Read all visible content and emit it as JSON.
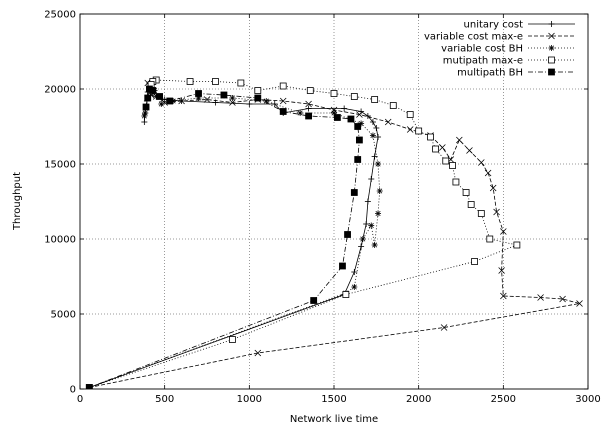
{
  "chart_data": {
    "type": "line",
    "xlabel": "Network live time",
    "ylabel": "Throughput",
    "xlim": [
      0,
      3000
    ],
    "ylim": [
      0,
      25000
    ],
    "xticks": [
      0,
      500,
      1000,
      1500,
      2000,
      2500,
      3000
    ],
    "yticks": [
      0,
      5000,
      10000,
      15000,
      20000,
      25000
    ],
    "grid": true,
    "legend_position": "top-right",
    "series": [
      {
        "name": "unitary cost",
        "line_style": "solid",
        "marker": "plus",
        "x": [
          55,
          1560,
          1620,
          1660,
          1690,
          1700,
          1720,
          1740,
          1760,
          1750,
          1730,
          1700,
          1660,
          1560,
          1350,
          1200,
          1150,
          1000,
          800,
          600,
          500,
          450,
          430,
          420,
          410,
          400,
          395,
          390,
          385,
          380
        ],
        "y": [
          100,
          6300,
          7800,
          9500,
          11000,
          12500,
          14000,
          15500,
          16800,
          17400,
          17800,
          18200,
          18500,
          18700,
          18700,
          18400,
          19000,
          19000,
          19100,
          19200,
          19300,
          19500,
          19800,
          20200,
          20400,
          19800,
          19200,
          18800,
          18400,
          17800
        ]
      },
      {
        "name": "variable cost max-e",
        "line_style": "dashed",
        "marker": "x",
        "x": [
          55,
          1050,
          2150,
          2950,
          2850,
          2720,
          2500,
          2490,
          2500,
          2460,
          2440,
          2410,
          2370,
          2300,
          2240,
          2190,
          2140,
          2070,
          1950,
          1820,
          1650,
          1500,
          1350,
          1200,
          1050,
          900,
          750,
          600,
          500,
          450,
          420,
          400
        ],
        "y": [
          100,
          2400,
          4100,
          5700,
          6000,
          6100,
          6200,
          7900,
          10500,
          11800,
          13400,
          14400,
          15100,
          15900,
          16600,
          15300,
          16100,
          16900,
          17300,
          17800,
          18300,
          18600,
          19000,
          19200,
          19300,
          19100,
          19300,
          19200,
          19100,
          19500,
          19600,
          20400
        ]
      },
      {
        "name": "variable cost BH",
        "line_style": "dotted",
        "marker": "star",
        "x": [
          55,
          1570,
          1620,
          1670,
          1720,
          1740,
          1760,
          1770,
          1760,
          1730,
          1660,
          1500,
          1300,
          1100,
          900,
          700,
          550,
          480,
          440,
          420,
          410,
          400,
          390,
          385,
          380
        ],
        "y": [
          100,
          6400,
          6800,
          10000,
          10900,
          9600,
          11700,
          13200,
          15000,
          16900,
          17700,
          18400,
          18400,
          19200,
          19400,
          19400,
          19200,
          19000,
          19900,
          20400,
          20000,
          19400,
          18800,
          18400,
          18200
        ]
      },
      {
        "name": "mutipath max-e",
        "line_style": "dotted",
        "marker": "square",
        "x": [
          55,
          900,
          1570,
          2330,
          2580,
          2420,
          2370,
          2310,
          2280,
          2220,
          2200,
          2160,
          2100,
          2070,
          2000,
          1950,
          1850,
          1740,
          1620,
          1500,
          1360,
          1200,
          1050,
          950,
          800,
          650,
          450,
          430,
          420
        ],
        "y": [
          100,
          3300,
          6300,
          8500,
          9600,
          10000,
          11700,
          12300,
          13100,
          13800,
          14900,
          15200,
          16000,
          16800,
          17200,
          18300,
          18900,
          19300,
          19500,
          19700,
          19900,
          20200,
          19900,
          20400,
          20500,
          20500,
          20600,
          20500,
          20300
        ]
      },
      {
        "name": "multipath BH",
        "line_style": "dashdot",
        "marker": "filled-square",
        "x": [
          55,
          1380,
          1550,
          1580,
          1620,
          1640,
          1650,
          1640,
          1600,
          1520,
          1350,
          1200,
          1050,
          850,
          700,
          530,
          470,
          430,
          410,
          400,
          390
        ],
        "y": [
          100,
          5900,
          8200,
          10300,
          13100,
          15300,
          16600,
          17500,
          18000,
          18100,
          18200,
          18500,
          19400,
          19600,
          19700,
          19200,
          19500,
          19900,
          20000,
          19400,
          18800
        ]
      }
    ]
  }
}
